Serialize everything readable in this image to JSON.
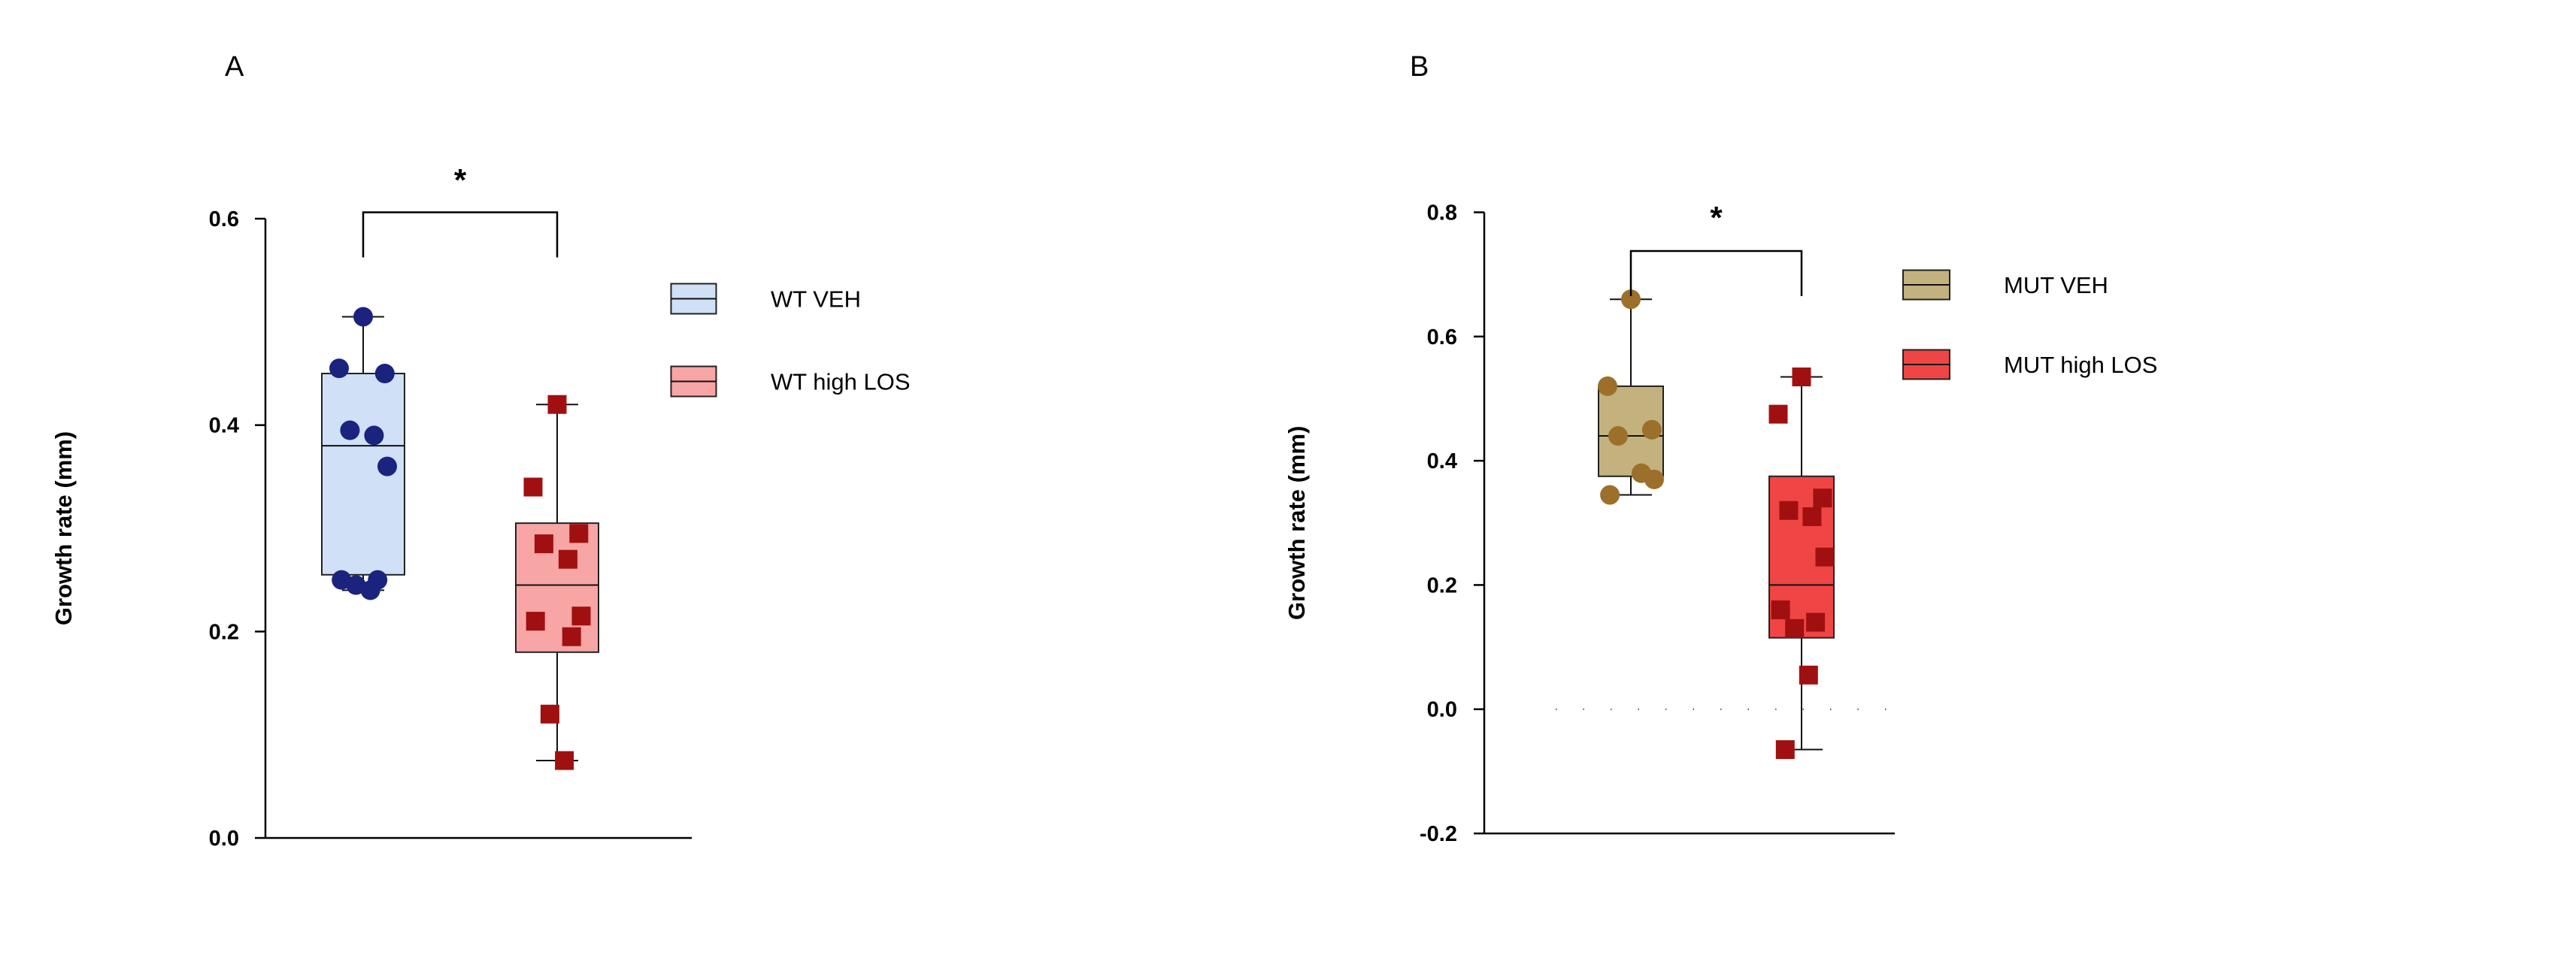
{
  "chart_data": [
    {
      "type": "box",
      "panel_label": "A",
      "ylabel": "Growth rate (mm)",
      "xlabel": "",
      "ylim": [
        0.0,
        0.6
      ],
      "yticks": [
        0.0,
        0.2,
        0.4,
        0.6
      ],
      "ytick_labels": [
        "0.0",
        "0.2",
        "0.4",
        "0.6"
      ],
      "legend_position": "right",
      "significance": "*",
      "series": [
        {
          "name": "WT VEH",
          "fill": "#cfe0f7",
          "point_color": "#1a237e",
          "marker": "circle",
          "min": 0.24,
          "q1": 0.255,
          "median": 0.38,
          "q3": 0.45,
          "max": 0.505,
          "points": [
            0.505,
            0.455,
            0.45,
            0.395,
            0.39,
            0.36,
            0.25,
            0.25,
            0.245,
            0.24
          ]
        },
        {
          "name": "WT high LOS",
          "fill": "#f8a5a5",
          "point_color": "#a01010",
          "marker": "square",
          "min": 0.075,
          "q1": 0.18,
          "median": 0.245,
          "q3": 0.305,
          "max": 0.42,
          "points": [
            0.42,
            0.34,
            0.295,
            0.285,
            0.27,
            0.215,
            0.21,
            0.195,
            0.12,
            0.075
          ]
        }
      ]
    },
    {
      "type": "box",
      "panel_label": "B",
      "ylabel": "Growth rate (mm)",
      "xlabel": "",
      "ylim": [
        -0.2,
        0.8
      ],
      "yticks": [
        -0.2,
        0.0,
        0.2,
        0.4,
        0.6,
        0.8
      ],
      "ytick_labels": [
        "-0.2",
        "0.0",
        "0.2",
        "0.4",
        "0.6",
        "0.8"
      ],
      "legend_position": "right",
      "significance": "*",
      "reference_line": 0.0,
      "series": [
        {
          "name": "MUT VEH",
          "fill": "#c4b27e",
          "point_color": "#9c6f2a",
          "marker": "circle",
          "min": 0.345,
          "q1": 0.375,
          "median": 0.44,
          "q3": 0.52,
          "max": 0.66,
          "points": [
            0.66,
            0.52,
            0.45,
            0.44,
            0.38,
            0.37,
            0.345
          ]
        },
        {
          "name": "MUT high LOS",
          "fill": "#f04545",
          "point_color": "#a01010",
          "marker": "square",
          "min": -0.065,
          "q1": 0.115,
          "median": 0.2,
          "q3": 0.375,
          "max": 0.535,
          "points": [
            0.535,
            0.475,
            0.34,
            0.32,
            0.31,
            0.245,
            0.16,
            0.14,
            0.13,
            0.055,
            -0.065
          ]
        }
      ]
    }
  ]
}
